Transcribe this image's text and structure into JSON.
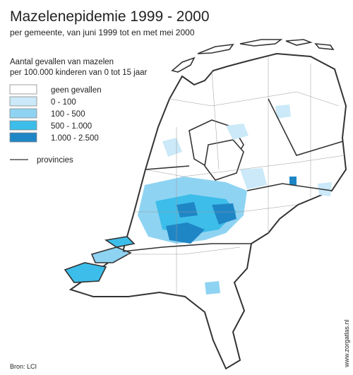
{
  "header": {
    "title": "Mazelenepidemie 1999 - 2000",
    "subtitle": "per gemeente, van juni 1999 tot en met mei 2000"
  },
  "legend": {
    "title_lines": [
      "Aantal gevallen van mazelen",
      "per 100.000 kinderen van 0 tot 15 jaar"
    ],
    "items": [
      {
        "label": "geen gevallen",
        "color": "#ffffff"
      },
      {
        "label": "0 -   100",
        "color": "#cbe9f8"
      },
      {
        "label": "100 -   500",
        "color": "#8fd3f2"
      },
      {
        "label": "500 - 1.000",
        "color": "#3dbde9"
      },
      {
        "label": "1.000 - 2.500",
        "color": "#1f86c6"
      }
    ],
    "line_label": "provincies"
  },
  "source": "Bron: LCI",
  "website": "www.zorgatlas.nl"
}
